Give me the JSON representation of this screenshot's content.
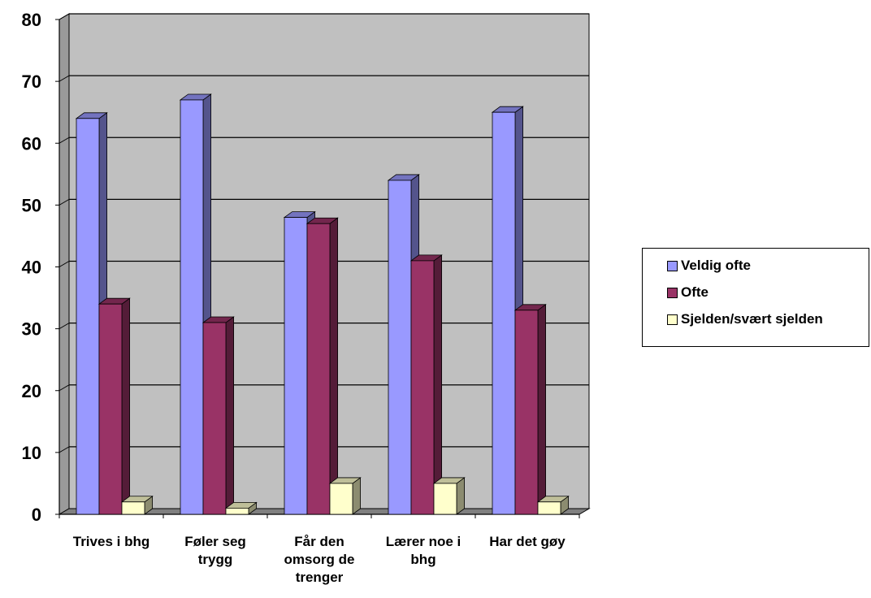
{
  "chart_data": {
    "type": "bar",
    "categories": [
      [
        "Trives i bhg"
      ],
      [
        "Føler seg",
        "trygg"
      ],
      [
        "Får den",
        "omsorg de",
        "trenger"
      ],
      [
        "Lærer noe i",
        "bhg"
      ],
      [
        "Har det gøy"
      ]
    ],
    "series": [
      {
        "name": "Veldig ofte",
        "values": [
          64,
          67,
          48,
          54,
          65
        ],
        "color": "#9999ff"
      },
      {
        "name": "Ofte",
        "values": [
          34,
          31,
          47,
          41,
          33
        ],
        "color": "#993366"
      },
      {
        "name": "Sjelden/svært sjelden",
        "values": [
          2,
          1,
          5,
          5,
          2
        ],
        "color": "#ffffcc"
      }
    ],
    "ylim": [
      0,
      80
    ],
    "yticks": [
      "0",
      "10",
      "20",
      "30",
      "40",
      "50",
      "60",
      "70",
      "80"
    ],
    "grid": true,
    "wall_color": "#c0c0c0",
    "legend_position": "right",
    "title": "",
    "xlabel": "",
    "ylabel": ""
  }
}
